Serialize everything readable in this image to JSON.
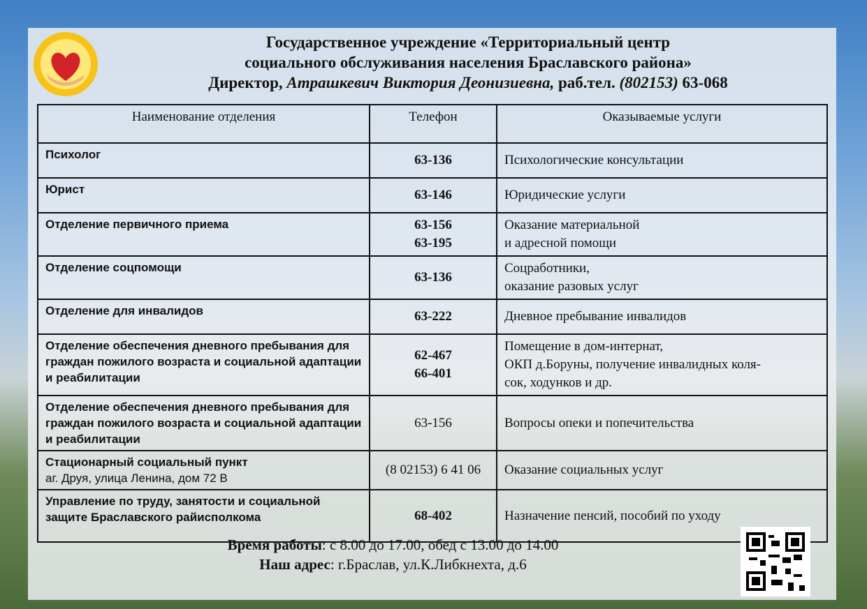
{
  "header": {
    "line1": "Государственное учреждение «Территориальный центр",
    "line2": "социального обслуживания населения Браславского района»",
    "director_label": "Директор,",
    "director_name": "Атрашкевич Виктория Деонизиевна,",
    "phone_label": "раб.тел.",
    "phone_code": "(802153)",
    "phone": "63-068"
  },
  "table": {
    "headers": [
      "Наименование отделения",
      "Телефон",
      "Оказываемые услуги"
    ],
    "rows": [
      {
        "name": "Психолог",
        "phones": [
          "63-136"
        ],
        "service": [
          "Психологические консультации"
        ],
        "h": 50
      },
      {
        "name": "Юрист",
        "phones": [
          "63-146"
        ],
        "service": [
          "Юридические услуги"
        ],
        "h": 50
      },
      {
        "name": "Отделение первичного приема",
        "phones": [
          "63-156",
          "63-195"
        ],
        "service": [
          "Оказание материальной",
          "и адресной помощи"
        ],
        "h": 55
      },
      {
        "name": "Отделение соцпомощи",
        "phones": [
          "63-136"
        ],
        "service": [
          "Соцработники,",
          "оказание разовых услуг"
        ],
        "h": 54
      },
      {
        "name": "Отделение для инвалидов",
        "phones": [
          "63-222"
        ],
        "service": [
          "Дневное пребывание инвалидов"
        ],
        "h": 50
      },
      {
        "name": "Отделение обеспечения дневного пребывания для граждан пожилого возраста и социальной адаптации и реабилитации",
        "phones": [
          "62-467",
          "66-401"
        ],
        "service": [
          "Помещение в дом-интернат,",
          "ОКП д.Боруны, получение инвалидных коля-",
          "сок, ходунков и др."
        ],
        "h": 82
      },
      {
        "name": "Отделение обеспечения дневного пребывания для граждан пожилого возраста и социальной адаптации и реабилитации",
        "phones": [
          "63-156"
        ],
        "service": [
          "Вопросы опеки и попечительства"
        ],
        "h": 73,
        "regular": true
      },
      {
        "name": "Стационарный социальный пункт",
        "sub": "аг. Друя, улица Ленина, дом 72 В",
        "phones": [
          "(8 02153) 6 41 06"
        ],
        "service": [
          "Оказание социальных услуг"
        ],
        "h": 52,
        "regular": true
      },
      {
        "name": "Управление по труду, занятости и социальной защите Браславского райисполкома",
        "phones": [
          "68-402"
        ],
        "service": [
          "Назначение пенсий, пособий по уходу"
        ],
        "h": 75
      }
    ]
  },
  "footer": {
    "hours_label": "Время работы",
    "hours": ": с 8.00 до 17.00, обед с 13.00 до 14.00",
    "address_label": "Наш адрес",
    "address": ": г.Браслав, ул.К.Либкнехта, д.6"
  }
}
